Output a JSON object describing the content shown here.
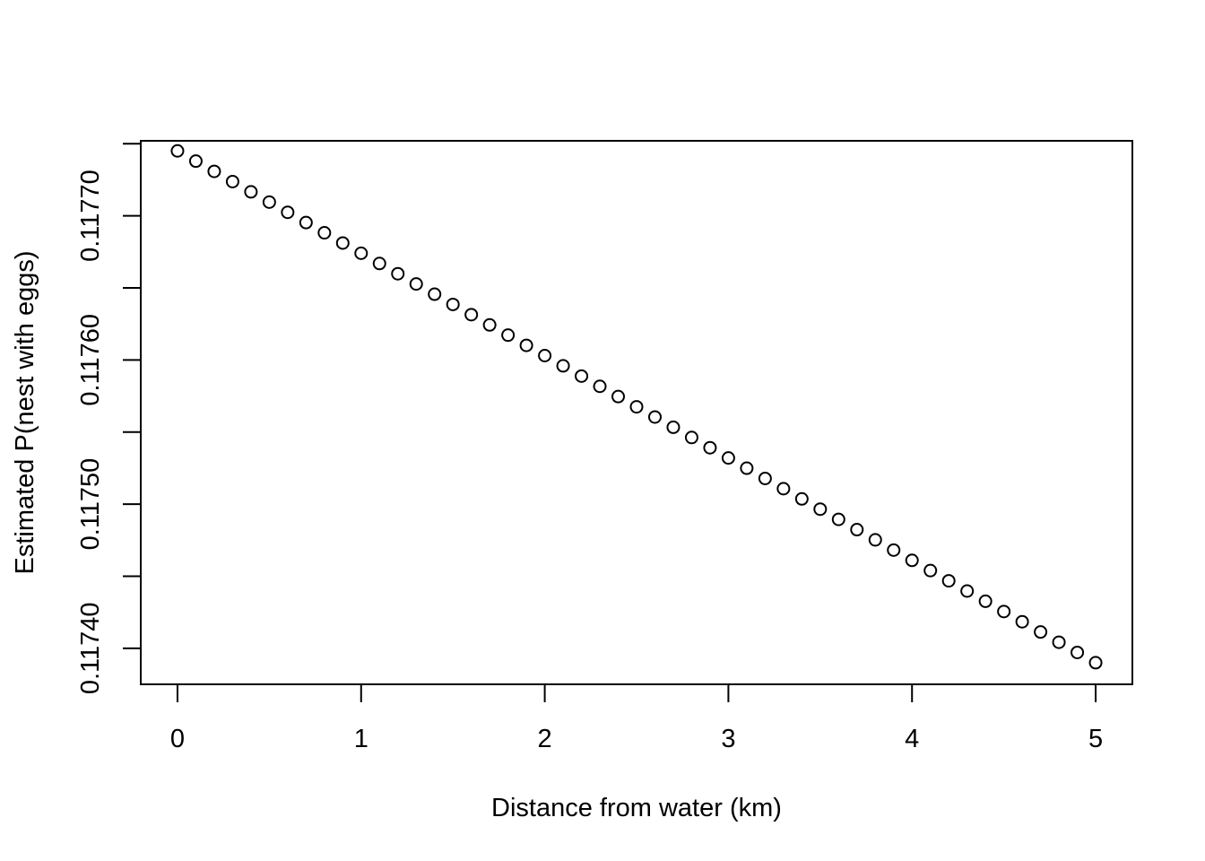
{
  "chart_data": {
    "type": "scatter",
    "title": "",
    "xlabel": "Distance from water (km)",
    "ylabel": "Estimated P(nest with eggs)",
    "xlim": [
      -0.2,
      5.2
    ],
    "ylim": [
      0.117375,
      0.117752
    ],
    "x_ticks": [
      0,
      1,
      2,
      3,
      4,
      5
    ],
    "x_tick_labels": [
      "0",
      "1",
      "2",
      "3",
      "4",
      "5"
    ],
    "y_ticks": [
      0.1174,
      0.11745,
      0.1175,
      0.11755,
      0.1176,
      0.11765,
      0.1177,
      0.11775
    ],
    "y_tick_labels": [
      "0.11740",
      "",
      "0.11750",
      "",
      "0.11760",
      "",
      "0.11770",
      ""
    ],
    "grid": false,
    "legend": "none",
    "marker": "open-circle",
    "series": [
      {
        "x": [
          0.0,
          0.1,
          0.2,
          0.3,
          0.4,
          0.5,
          0.6,
          0.7,
          0.8,
          0.9,
          1.0,
          1.1,
          1.2,
          1.3,
          1.4,
          1.5,
          1.6,
          1.7,
          1.8,
          1.9,
          2.0,
          2.1,
          2.2,
          2.3,
          2.4,
          2.5,
          2.6,
          2.7,
          2.8,
          2.9,
          3.0,
          3.1,
          3.2,
          3.3,
          3.4,
          3.5,
          3.6,
          3.7,
          3.8,
          3.9,
          4.0,
          4.1,
          4.2,
          4.3,
          4.4,
          4.5,
          4.6,
          4.7,
          4.8,
          4.9,
          5.0
        ],
        "y": [
          0.117745,
          0.1177379,
          0.1177308,
          0.1177237,
          0.1177166,
          0.1177095,
          0.1177024,
          0.1176953,
          0.1176882,
          0.1176811,
          0.117674,
          0.1176669,
          0.1176598,
          0.1176527,
          0.1176456,
          0.1176385,
          0.1176314,
          0.1176243,
          0.1176172,
          0.1176101,
          0.117603,
          0.1175959,
          0.1175888,
          0.1175817,
          0.1175746,
          0.1175675,
          0.1175604,
          0.1175533,
          0.1175462,
          0.1175391,
          0.117532,
          0.1175249,
          0.1175178,
          0.1175107,
          0.1175036,
          0.1174965,
          0.1174894,
          0.1174823,
          0.1174752,
          0.1174681,
          0.117461,
          0.1174539,
          0.1174468,
          0.1174397,
          0.1174326,
          0.1174255,
          0.1174184,
          0.1174113,
          0.1174042,
          0.1173971,
          0.11739
        ]
      }
    ]
  }
}
